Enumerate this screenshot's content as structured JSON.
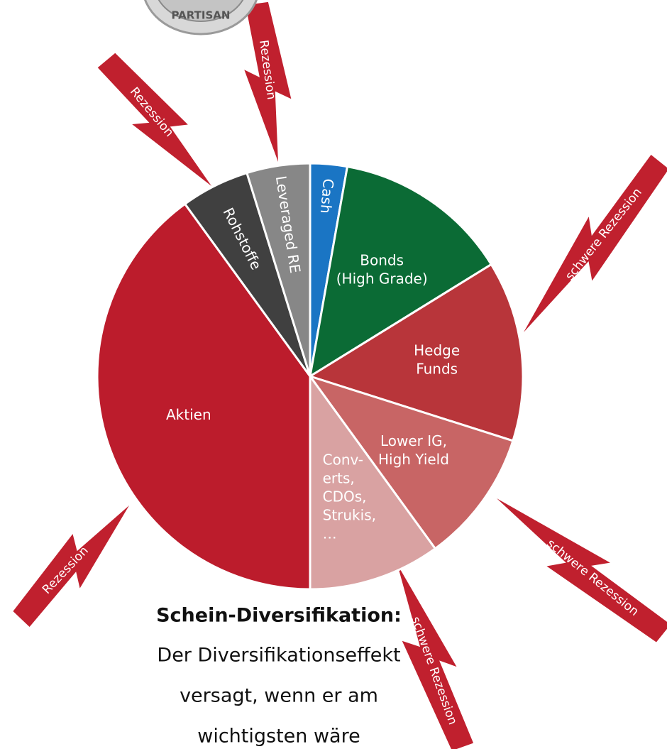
{
  "chart_data": {
    "type": "pie",
    "labels": [
      [
        "Cash"
      ],
      [
        "Bonds",
        "(High Grade)"
      ],
      [
        "Hedge",
        "Funds"
      ],
      [
        "Lower IG,",
        "High Yield"
      ],
      [
        "Conv-",
        "erts,",
        "CDOs,",
        "Strukis,",
        "…"
      ],
      [
        "Aktien"
      ],
      [
        "Rohstoffe"
      ],
      [
        "Leveraged RE"
      ]
    ],
    "values": [
      2.8,
      13.4,
      13.7,
      10.1,
      10,
      40,
      5.2,
      4.8
    ],
    "colors": [
      "#1a75c4",
      "#0b6b35",
      "#b8353a",
      "#c86565",
      "#d9a2a2",
      "#bc1c2c",
      "#404040",
      "#878787"
    ],
    "bolts": [
      {
        "label": "Rezession"
      },
      {
        "label": "Rezession"
      },
      {
        "label": "schwere Rezession"
      },
      {
        "label": "schwere Rezession"
      },
      {
        "label": "schwere Rezession"
      },
      {
        "label": "Rezession"
      }
    ],
    "coin_label": "PARTISAN",
    "caption": {
      "title": "Schein-Diversifikation:",
      "lines": [
        "Der Diversifikationseffekt",
        "versagt, wenn er am",
        "wichtigsten wäre"
      ]
    }
  }
}
